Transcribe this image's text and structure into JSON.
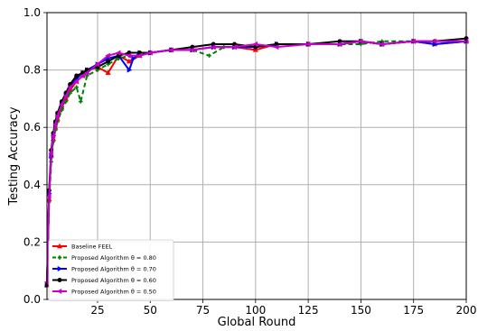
{
  "chart_data": {
    "type": "line",
    "title": "",
    "xlabel": "Global Round",
    "ylabel": "Testing Accuracy",
    "xlim": [
      1,
      200
    ],
    "ylim": [
      0.0,
      1.0
    ],
    "xticks": [
      25,
      50,
      75,
      100,
      125,
      150,
      175,
      200
    ],
    "yticks": [
      0.0,
      0.2,
      0.4,
      0.6,
      0.8,
      1.0
    ],
    "xtick_labels": [
      "25",
      "50",
      "75",
      "100",
      "125",
      "150",
      "175",
      "200"
    ],
    "ytick_labels": [
      "0.0",
      "0.2",
      "0.4",
      "0.6",
      "0.8",
      "1.0"
    ],
    "grid": true,
    "legend_position": "lower-left",
    "series": [
      {
        "name": "Baseline FEEL",
        "color": "#ff0000",
        "marker": "triangle",
        "linestyle": "solid",
        "x": [
          1,
          2,
          3,
          4,
          5,
          6,
          8,
          10,
          12,
          15,
          18,
          20,
          25,
          30,
          35,
          40,
          45,
          50,
          60,
          70,
          80,
          90,
          100,
          110,
          125,
          140,
          150,
          160,
          175,
          185,
          200
        ],
        "values": [
          0.05,
          0.35,
          0.5,
          0.56,
          0.6,
          0.63,
          0.67,
          0.7,
          0.73,
          0.76,
          0.78,
          0.8,
          0.81,
          0.79,
          0.85,
          0.83,
          0.85,
          0.86,
          0.87,
          0.87,
          0.88,
          0.88,
          0.87,
          0.89,
          0.89,
          0.89,
          0.9,
          0.89,
          0.9,
          0.89,
          0.9
        ]
      },
      {
        "name": "Proposed Algorithm  θ = 0.80",
        "color": "#008000",
        "marker": "plus",
        "linestyle": "dashed",
        "x": [
          1,
          2,
          3,
          4,
          5,
          6,
          8,
          10,
          12,
          15,
          17,
          20,
          25,
          30,
          35,
          40,
          45,
          50,
          60,
          70,
          78,
          85,
          100,
          110,
          125,
          140,
          150,
          160,
          175,
          185,
          200
        ],
        "values": [
          0.06,
          0.34,
          0.48,
          0.55,
          0.59,
          0.62,
          0.66,
          0.69,
          0.72,
          0.74,
          0.69,
          0.78,
          0.8,
          0.82,
          0.84,
          0.85,
          0.85,
          0.86,
          0.87,
          0.87,
          0.85,
          0.88,
          0.88,
          0.89,
          0.89,
          0.89,
          0.89,
          0.9,
          0.9,
          0.89,
          0.9
        ]
      },
      {
        "name": "Proposed Algorithm  θ = 0.70",
        "color": "#0000ff",
        "marker": "triangle-right",
        "linestyle": "solid",
        "x": [
          1,
          2,
          3,
          4,
          5,
          6,
          8,
          10,
          12,
          15,
          18,
          20,
          25,
          30,
          35,
          40,
          42,
          45,
          50,
          60,
          70,
          80,
          90,
          100,
          110,
          125,
          140,
          150,
          160,
          175,
          185,
          200
        ],
        "values": [
          0.05,
          0.37,
          0.5,
          0.57,
          0.61,
          0.64,
          0.68,
          0.71,
          0.74,
          0.77,
          0.79,
          0.8,
          0.82,
          0.84,
          0.85,
          0.8,
          0.84,
          0.86,
          0.86,
          0.87,
          0.87,
          0.88,
          0.88,
          0.88,
          0.89,
          0.89,
          0.89,
          0.9,
          0.89,
          0.9,
          0.89,
          0.9
        ]
      },
      {
        "name": "Proposed Algorithm  θ = 0.60",
        "color": "#000000",
        "marker": "circle",
        "linestyle": "solid",
        "x": [
          1,
          2,
          3,
          4,
          5,
          6,
          8,
          10,
          12,
          15,
          18,
          20,
          25,
          30,
          35,
          40,
          45,
          50,
          60,
          70,
          80,
          90,
          100,
          110,
          125,
          140,
          150,
          160,
          175,
          185,
          200
        ],
        "values": [
          0.05,
          0.38,
          0.52,
          0.58,
          0.62,
          0.65,
          0.69,
          0.72,
          0.75,
          0.78,
          0.79,
          0.8,
          0.81,
          0.83,
          0.85,
          0.86,
          0.86,
          0.86,
          0.87,
          0.88,
          0.89,
          0.89,
          0.88,
          0.89,
          0.89,
          0.9,
          0.9,
          0.89,
          0.9,
          0.9,
          0.91
        ]
      },
      {
        "name": "Proposed Algorithm  θ = 0.50",
        "color": "#cc00cc",
        "marker": "triangle-left",
        "linestyle": "solid",
        "x": [
          1,
          2,
          3,
          4,
          5,
          6,
          8,
          10,
          12,
          15,
          18,
          20,
          25,
          30,
          35,
          40,
          45,
          50,
          60,
          70,
          80,
          90,
          100,
          110,
          125,
          140,
          150,
          160,
          175,
          185,
          200
        ],
        "values": [
          0.06,
          0.36,
          0.51,
          0.57,
          0.61,
          0.64,
          0.68,
          0.71,
          0.74,
          0.76,
          0.78,
          0.79,
          0.82,
          0.85,
          0.86,
          0.85,
          0.85,
          0.86,
          0.87,
          0.87,
          0.88,
          0.88,
          0.89,
          0.88,
          0.89,
          0.89,
          0.9,
          0.89,
          0.9,
          0.9,
          0.9
        ]
      }
    ]
  }
}
